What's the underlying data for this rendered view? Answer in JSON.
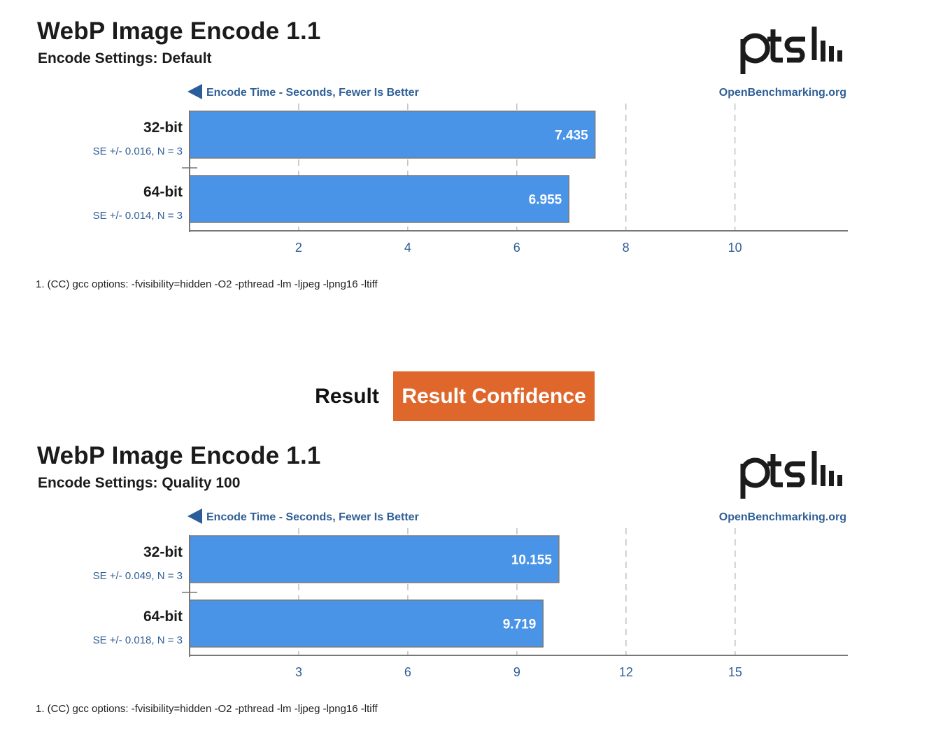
{
  "tabs": {
    "result_label": "Result",
    "confidence_label": "Result Confidence"
  },
  "colors": {
    "bar": "#4a94e8",
    "bar_border": "#7b7b7b",
    "axis_text": "#2f5f96",
    "accent_tab": "#e0672c",
    "grid": "#c0c0c0"
  },
  "chart_data": [
    {
      "type": "bar",
      "orientation": "horizontal",
      "title": "WebP Image Encode 1.1",
      "subtitle": "Encode Settings: Default",
      "xlabel": "Encode Time - Seconds, Fewer Is Better",
      "source": "OpenBenchmarking.org",
      "categories": [
        "32-bit",
        "64-bit"
      ],
      "values": [
        7.435,
        6.955
      ],
      "value_labels": [
        "7.435",
        "6.955"
      ],
      "errors": [
        "SE +/- 0.016, N = 3",
        "SE +/- 0.014, N = 3"
      ],
      "xlim": [
        0,
        12.07
      ],
      "xticks": [
        2,
        4,
        6,
        8,
        10
      ],
      "grid": true,
      "legend": "none",
      "footnote": "1. (CC) gcc options: -fvisibility=hidden -O2 -pthread -lm -ljpeg -lpng16 -ltiff"
    },
    {
      "type": "bar",
      "orientation": "horizontal",
      "title": "WebP Image Encode 1.1",
      "subtitle": "Encode Settings: Quality 100",
      "xlabel": "Encode Time - Seconds, Fewer Is Better",
      "source": "OpenBenchmarking.org",
      "categories": [
        "32-bit",
        "64-bit"
      ],
      "values": [
        10.155,
        9.719
      ],
      "value_labels": [
        "10.155",
        "9.719"
      ],
      "errors": [
        "SE +/- 0.049, N = 3",
        "SE +/- 0.018, N = 3"
      ],
      "xlim": [
        0,
        18.1
      ],
      "xticks": [
        3,
        6,
        9,
        12,
        15
      ],
      "grid": true,
      "legend": "none",
      "footnote": "1. (CC) gcc options: -fvisibility=hidden -O2 -pthread -lm -ljpeg -lpng16 -ltiff"
    }
  ]
}
